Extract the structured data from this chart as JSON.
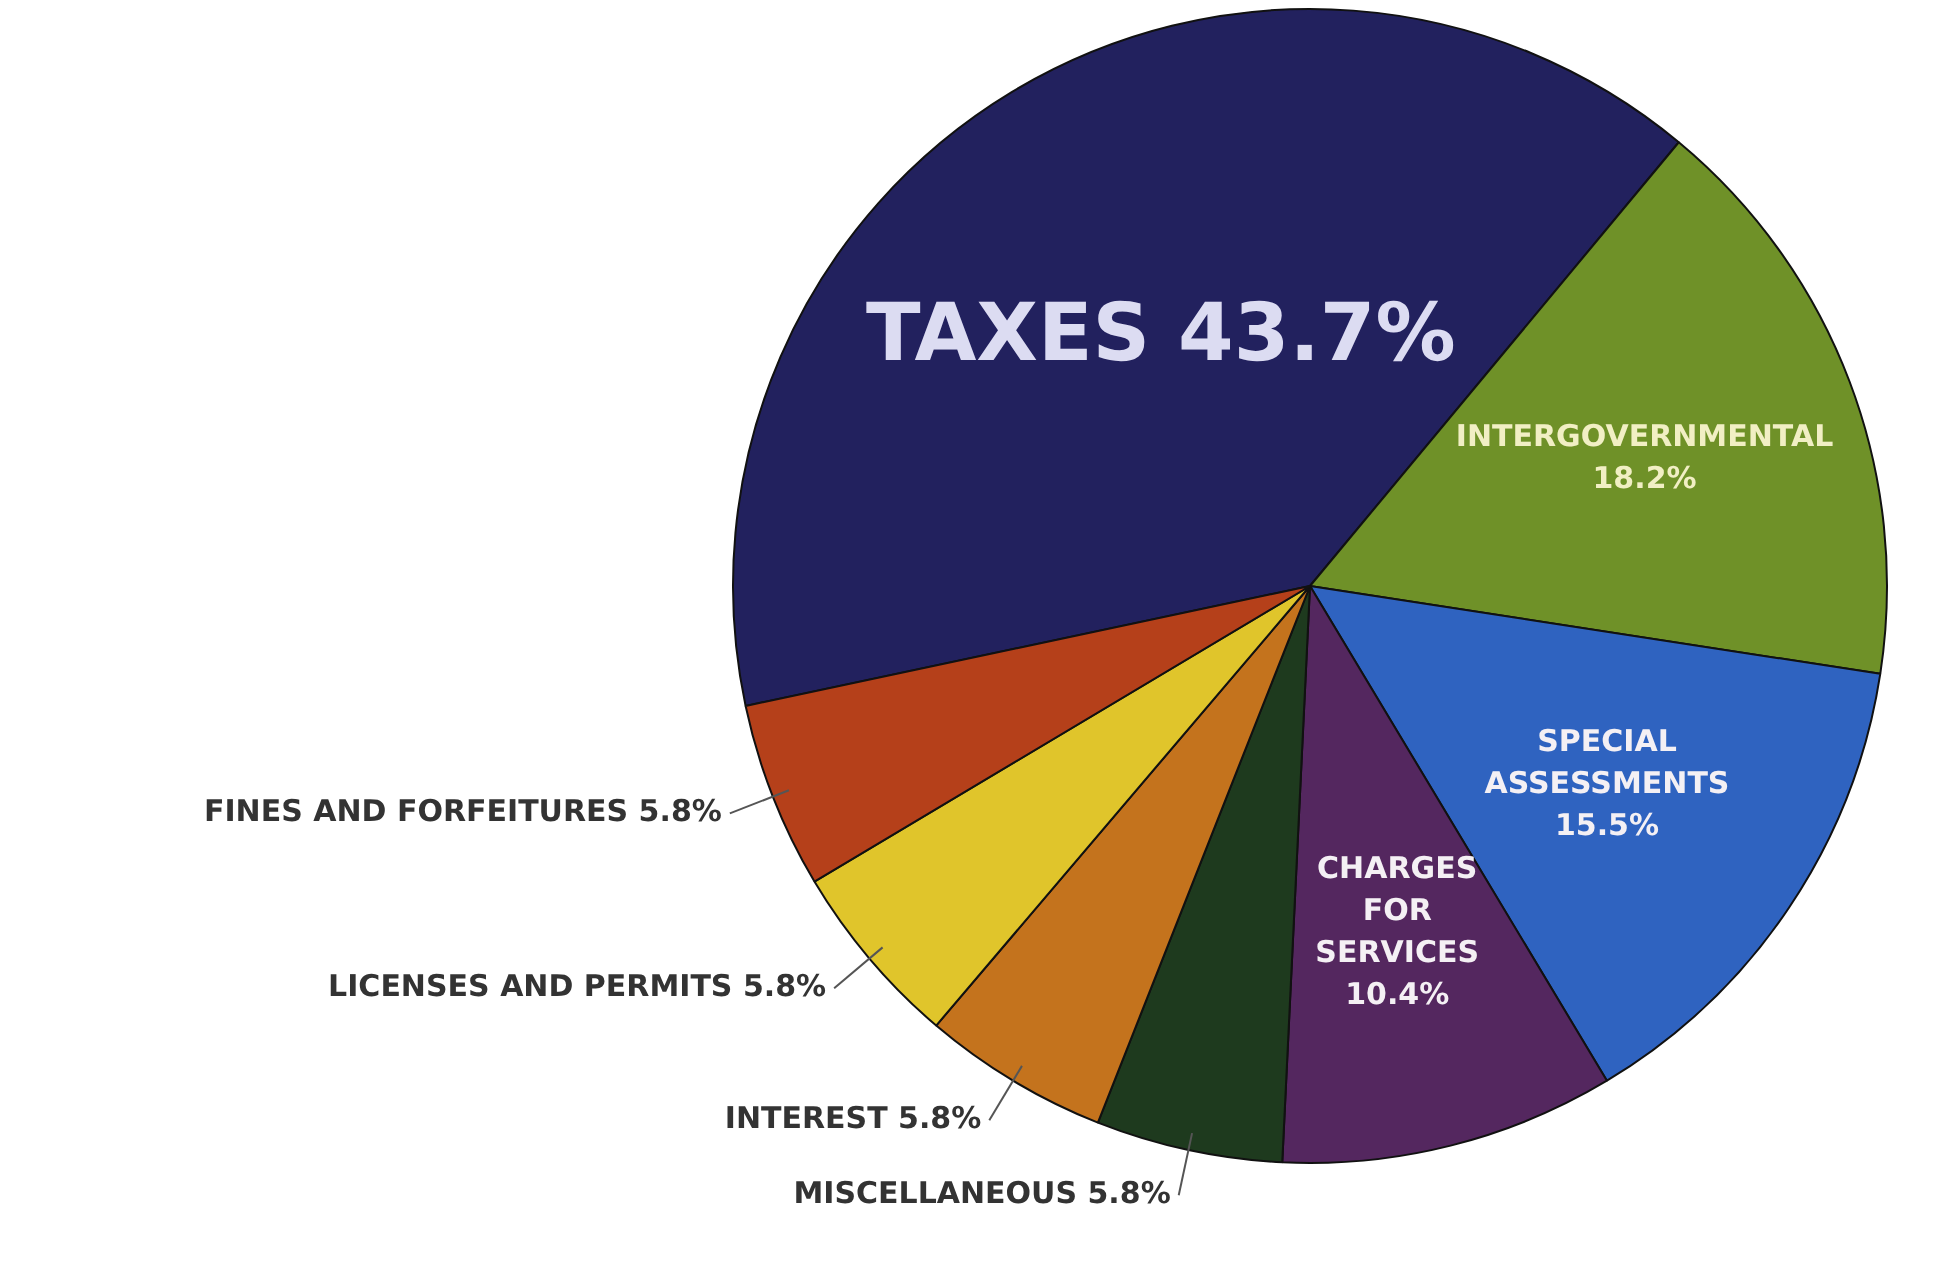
{
  "chart_data": {
    "type": "pie",
    "categories": [
      "TAXES",
      "INTERGOVERNMENTAL",
      "SPECIAL ASSESSMENTS",
      "CHARGES FOR SERVICES",
      "MISCELLANEOUS",
      "INTEREST",
      "LICENSES AND PERMITS",
      "FINES AND FORFEITURES"
    ],
    "values": [
      43.7,
      18.2,
      15.5,
      10.4,
      5.8,
      5.8,
      5.8,
      5.8
    ],
    "value_labels": [
      "43.7%",
      "18.2%",
      "15.5%",
      "10.4%",
      "5.8%",
      "5.8%",
      "5.8%",
      "5.8%"
    ],
    "colors": [
      "#22215e",
      "#6f9128",
      "#2f63c0",
      "#54275f",
      "#1e3a1e",
      "#c4731d",
      "#e0c52b",
      "#b5401a"
    ],
    "legend": false
  }
}
